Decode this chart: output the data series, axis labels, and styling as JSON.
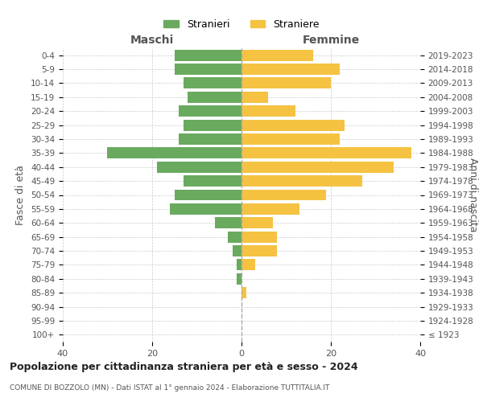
{
  "age_groups": [
    "100+",
    "95-99",
    "90-94",
    "85-89",
    "80-84",
    "75-79",
    "70-74",
    "65-69",
    "60-64",
    "55-59",
    "50-54",
    "45-49",
    "40-44",
    "35-39",
    "30-34",
    "25-29",
    "20-24",
    "15-19",
    "10-14",
    "5-9",
    "0-4"
  ],
  "birth_years": [
    "≤ 1923",
    "1924-1928",
    "1929-1933",
    "1934-1938",
    "1939-1943",
    "1944-1948",
    "1949-1953",
    "1954-1958",
    "1959-1963",
    "1964-1968",
    "1969-1973",
    "1974-1978",
    "1979-1983",
    "1984-1988",
    "1989-1993",
    "1994-1998",
    "1999-2003",
    "2004-2008",
    "2009-2013",
    "2014-2018",
    "2019-2023"
  ],
  "males": [
    0,
    0,
    0,
    0,
    1,
    1,
    2,
    3,
    6,
    16,
    15,
    13,
    19,
    30,
    14,
    13,
    14,
    12,
    13,
    15,
    15
  ],
  "females": [
    0,
    0,
    0,
    1,
    0,
    3,
    8,
    8,
    7,
    13,
    19,
    27,
    34,
    38,
    22,
    23,
    12,
    6,
    20,
    22,
    16
  ],
  "male_color": "#6aaa5e",
  "female_color": "#f5c242",
  "title": "Popolazione per cittadinanza straniera per età e sesso - 2024",
  "subtitle": "COMUNE DI BOZZOLO (MN) - Dati ISTAT al 1° gennaio 2024 - Elaborazione TUTTITALIA.IT",
  "xlabel_left": "Maschi",
  "xlabel_right": "Femmine",
  "ylabel_left": "Fasce di età",
  "ylabel_right": "Anni di nascita",
  "legend_males": "Stranieri",
  "legend_females": "Straniere",
  "xlim": 40,
  "background_color": "#ffffff",
  "grid_color": "#cccccc",
  "bar_height": 0.8
}
